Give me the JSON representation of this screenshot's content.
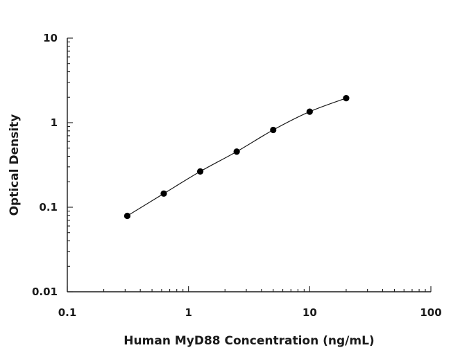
{
  "chart_data": {
    "type": "scatter",
    "xlabel": "Human MyD88 Concentration (ng/mL)",
    "ylabel": "Optical Density",
    "x_scale": "log",
    "y_scale": "log",
    "xlim": [
      0.1,
      100
    ],
    "ylim": [
      0.01,
      10
    ],
    "x_ticks": [
      "0.1",
      "1",
      "10",
      "100"
    ],
    "y_ticks": [
      "10",
      "1",
      "0.1",
      "0.01"
    ],
    "grid": false,
    "legend": "none",
    "fit_line": "smooth curve through points",
    "series": [
      {
        "x": [
          0.3125,
          0.625,
          1.25,
          2.5,
          5,
          10,
          20
        ],
        "y": [
          0.079,
          0.145,
          0.265,
          0.455,
          0.82,
          1.35,
          1.95
        ]
      }
    ],
    "colors": {
      "points": "#000000",
      "axes": "#1a1a1a"
    }
  }
}
